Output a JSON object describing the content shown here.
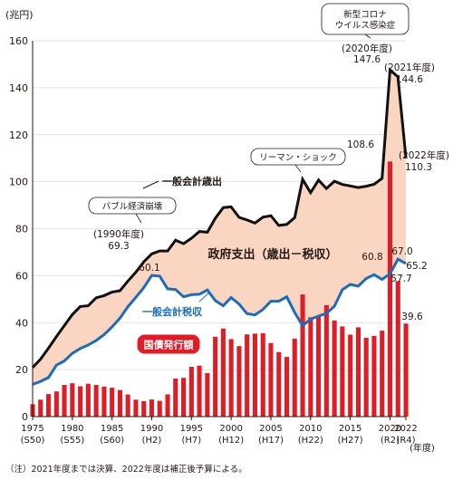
{
  "chart_data": {
    "type": "bar+line",
    "y_unit": "(兆円)",
    "x_unit": "(年度)",
    "ylim": [
      0,
      160
    ],
    "yticks": [
      0,
      20,
      40,
      60,
      80,
      100,
      120,
      140,
      160
    ],
    "xlim": [
      1975,
      2022
    ],
    "xticks": [
      {
        "year": 1975,
        "label": "1975",
        "era": "(S50)"
      },
      {
        "year": 1980,
        "label": "1980",
        "era": "(S55)"
      },
      {
        "year": 1985,
        "label": "1985",
        "era": "(S60)"
      },
      {
        "year": 1990,
        "label": "1990",
        "era": "(H2)"
      },
      {
        "year": 1995,
        "label": "1995",
        "era": "(H7)"
      },
      {
        "year": 2000,
        "label": "2000",
        "era": "(H12)"
      },
      {
        "year": 2005,
        "label": "2005",
        "era": "(H17)"
      },
      {
        "year": 2010,
        "label": "2010",
        "era": "(H22)"
      },
      {
        "year": 2015,
        "label": "2015",
        "era": "(H27)"
      },
      {
        "year": 2020,
        "label": "2020",
        "era": "(R2)"
      },
      {
        "year": 2022,
        "label": "2022",
        "era": "(R4)"
      }
    ],
    "years": [
      1975,
      1976,
      1977,
      1978,
      1979,
      1980,
      1981,
      1982,
      1983,
      1984,
      1985,
      1986,
      1987,
      1988,
      1989,
      1990,
      1991,
      1992,
      1993,
      1994,
      1995,
      1996,
      1997,
      1998,
      1999,
      2000,
      2001,
      2002,
      2003,
      2004,
      2005,
      2006,
      2007,
      2008,
      2009,
      2010,
      2011,
      2012,
      2013,
      2014,
      2015,
      2016,
      2017,
      2018,
      2019,
      2020,
      2021,
      2022
    ],
    "series": [
      {
        "name": "一般会計歳出",
        "type": "line",
        "color": "#111111",
        "values": [
          20.9,
          24.5,
          29.1,
          34.1,
          38.8,
          43.4,
          46.9,
          47.2,
          50.6,
          51.5,
          53.0,
          53.6,
          57.7,
          61.5,
          65.9,
          69.3,
          70.5,
          70.5,
          75.1,
          73.6,
          75.9,
          78.8,
          78.5,
          84.4,
          89.0,
          89.3,
          84.8,
          83.7,
          82.4,
          84.9,
          85.5,
          81.4,
          81.8,
          84.7,
          101.0,
          95.3,
          100.7,
          97.1,
          100.2,
          98.8,
          98.2,
          97.5,
          98.1,
          98.9,
          101.4,
          147.6,
          144.6,
          110.3
        ]
      },
      {
        "name": "一般会計税収",
        "type": "line",
        "color": "#1f6bb5",
        "values": [
          13.7,
          15.0,
          16.6,
          21.9,
          23.7,
          26.9,
          29.0,
          30.5,
          32.4,
          34.9,
          38.2,
          41.9,
          46.8,
          50.8,
          54.9,
          60.1,
          59.8,
          54.4,
          54.1,
          51.0,
          51.9,
          52.1,
          53.9,
          49.4,
          47.2,
          50.7,
          47.9,
          43.8,
          43.3,
          45.6,
          49.1,
          49.1,
          51.0,
          44.3,
          38.7,
          41.5,
          42.8,
          43.9,
          47.0,
          54.0,
          56.3,
          55.5,
          58.8,
          60.4,
          58.4,
          60.8,
          67.0,
          65.2
        ]
      },
      {
        "name": "国債発行額",
        "type": "bar",
        "color": "#dd1e26",
        "values": [
          5.3,
          7.2,
          9.6,
          10.7,
          13.5,
          14.2,
          12.9,
          14.0,
          13.5,
          12.8,
          12.3,
          11.3,
          9.4,
          7.2,
          6.6,
          7.3,
          6.7,
          9.5,
          16.2,
          16.5,
          21.2,
          21.7,
          18.5,
          34.0,
          37.5,
          33.0,
          30.0,
          35.0,
          35.3,
          35.5,
          31.3,
          27.5,
          25.4,
          33.2,
          52.0,
          42.3,
          42.8,
          47.5,
          40.9,
          38.4,
          34.9,
          38.0,
          33.6,
          34.4,
          36.6,
          108.6,
          57.7,
          39.6
        ]
      }
    ],
    "annotations": {
      "gap_label": "政府支出（歳出－税収）",
      "callout_1990": "(1990年度)",
      "value_1990_exp": "69.3",
      "value_1990_tax": "60.1",
      "bubble_bubble": "バブル経済崩壊",
      "bubble_lehman": "リーマン・ショック",
      "bubble_covid_l1": "新型コロナ",
      "bubble_covid_l2": "ウイルス感染症",
      "covid_year": "(2020年度)",
      "value_2020_exp": "147.6",
      "label_2021": "(2021年度)",
      "value_2021_exp": "144.6",
      "label_2022": "(2022年度)",
      "value_2022_exp": "110.3",
      "value_2020_bond": "108.6",
      "value_2020_tax": "60.8",
      "value_2021_tax": "67.0",
      "value_2022_tax": "65.2",
      "value_2021_bond": "57.7",
      "value_2022_bond": "39.6"
    }
  },
  "footnote": "（注）2021年度までは決算、2022年度は補正後予算による。",
  "colors": {
    "fill": "#f9d5c2",
    "expense": "#111111",
    "tax": "#1f6bb5",
    "bond": "#dd1e26",
    "grid": "#d9d9d9"
  }
}
